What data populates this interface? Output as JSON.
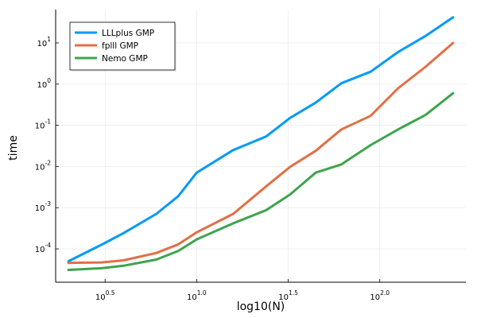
{
  "chart_data": {
    "type": "line",
    "title": "",
    "xlabel": "log10(N)",
    "ylabel": "time",
    "x_scale": "log10",
    "y_scale": "log10",
    "xlim_log10": [
      0.23,
      2.47
    ],
    "ylim_log10": [
      -4.81,
      1.81
    ],
    "grid": true,
    "legend_position": "top-left",
    "x_ticks": [
      {
        "value_log10": 0.5,
        "base": "10",
        "exp": "0.5"
      },
      {
        "value_log10": 1.0,
        "base": "10",
        "exp": "1.0"
      },
      {
        "value_log10": 1.5,
        "base": "10",
        "exp": "1.5"
      },
      {
        "value_log10": 2.0,
        "base": "10",
        "exp": "2.0"
      }
    ],
    "y_ticks": [
      {
        "value_log10": -4,
        "base": "10",
        "exp": "-4"
      },
      {
        "value_log10": -3,
        "base": "10",
        "exp": "-3"
      },
      {
        "value_log10": -2,
        "base": "10",
        "exp": "-2"
      },
      {
        "value_log10": -1,
        "base": "10",
        "exp": "-1"
      },
      {
        "value_log10": 0,
        "base": "10",
        "exp": "0"
      },
      {
        "value_log10": 1,
        "base": "10",
        "exp": "1"
      }
    ],
    "x_log10": [
      0.3,
      0.48,
      0.6,
      0.78,
      0.9,
      1.0,
      1.2,
      1.38,
      1.51,
      1.65,
      1.79,
      1.95,
      2.1,
      2.25,
      2.4
    ],
    "series": [
      {
        "name": "LLLplus GMP",
        "color": "#009af9",
        "y_log10": [
          -4.3,
          -3.9,
          -3.62,
          -3.15,
          -2.72,
          -2.15,
          -1.6,
          -1.27,
          -0.82,
          -0.45,
          0.02,
          0.3,
          0.78,
          1.17,
          1.62
        ]
      },
      {
        "name": "fplll GMP",
        "color": "#e26f46",
        "y_log10": [
          -4.34,
          -4.33,
          -4.28,
          -4.1,
          -3.89,
          -3.6,
          -3.15,
          -2.48,
          -2.01,
          -1.62,
          -1.1,
          -0.77,
          -0.1,
          0.42,
          1.0
        ]
      },
      {
        "name": "Nemo GMP",
        "color": "#3da44d",
        "y_log10": [
          -4.51,
          -4.47,
          -4.41,
          -4.26,
          -4.05,
          -3.77,
          -3.38,
          -3.06,
          -2.68,
          -2.15,
          -1.95,
          -1.48,
          -1.1,
          -0.75,
          -0.22
        ]
      }
    ]
  }
}
